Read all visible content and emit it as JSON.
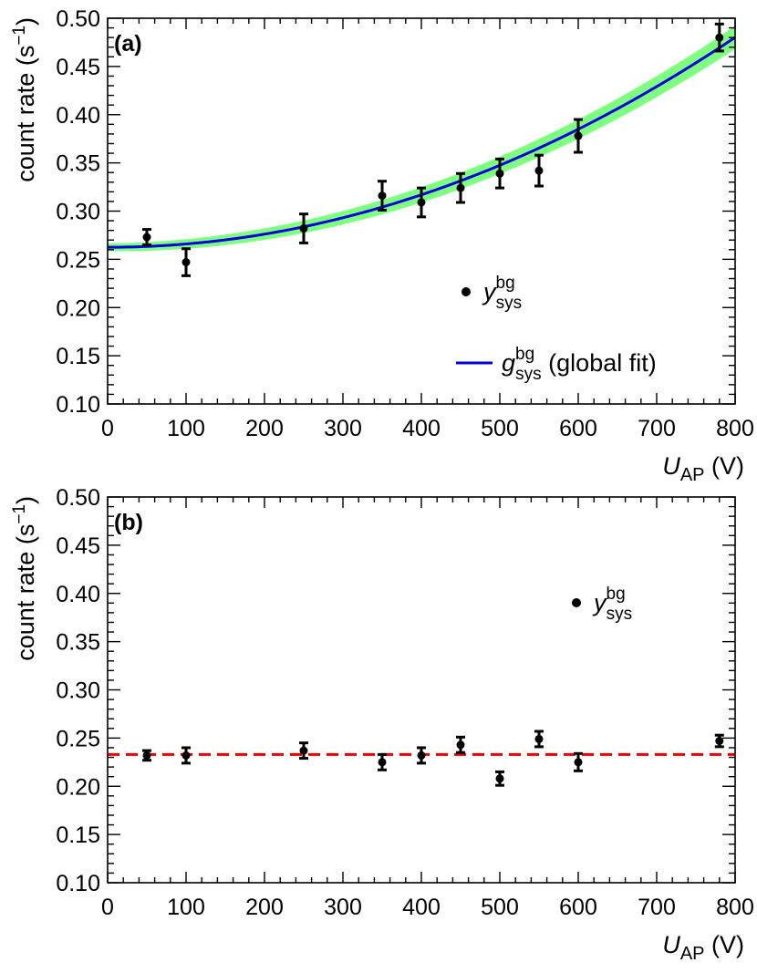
{
  "chart_data": [
    {
      "type": "scatter",
      "panel_label": "(a)",
      "xlabel": "U",
      "xlabel_sub": "AP",
      "xlabel_unit": "(V)",
      "ylabel": "count rate (s",
      "ylabel_sup": "−1",
      "ylabel_close": ")",
      "xlim": [
        0,
        800
      ],
      "ylim": [
        0.1,
        0.5
      ],
      "xticks": [
        0,
        100,
        200,
        300,
        400,
        500,
        600,
        700,
        800
      ],
      "yticks": [
        0.1,
        0.15,
        0.2,
        0.25,
        0.3,
        0.35,
        0.4,
        0.45,
        0.5
      ],
      "xtick_labels": [
        "0",
        "100",
        "200",
        "300",
        "400",
        "500",
        "600",
        "700",
        "800"
      ],
      "ytick_labels": [
        "0.10",
        "0.15",
        "0.20",
        "0.25",
        "0.30",
        "0.35",
        "0.40",
        "0.45",
        "0.50"
      ],
      "grid": false,
      "series": [
        {
          "name": "y_sys^bg",
          "kind": "points",
          "x": [
            50,
            100,
            250,
            350,
            400,
            450,
            500,
            550,
            600,
            780
          ],
          "y": [
            0.273,
            0.247,
            0.282,
            0.316,
            0.309,
            0.324,
            0.339,
            0.342,
            0.378,
            0.48
          ],
          "yerr": [
            0.008,
            0.014,
            0.015,
            0.015,
            0.015,
            0.015,
            0.015,
            0.016,
            0.017,
            0.014
          ]
        },
        {
          "name": "g_sys^bg (global fit)",
          "kind": "curve",
          "color": "#0000dd",
          "band_color": "#7fff7f",
          "model": "a + b*x^2",
          "a": 0.2625,
          "b": 3.4e-07,
          "band_halfwidth_at_0": 0.004,
          "band_halfwidth_at_800": 0.012
        }
      ],
      "legend": [
        {
          "symbol": "point",
          "text": "y",
          "sub": "sys",
          "sup": "bg"
        },
        {
          "symbol": "line",
          "text": "g",
          "sub": "sys",
          "sup": "bg",
          "suffix": "(global fit)"
        }
      ]
    },
    {
      "type": "scatter",
      "panel_label": "(b)",
      "xlabel": "U",
      "xlabel_sub": "AP",
      "xlabel_unit": "(V)",
      "ylabel": "count rate (s",
      "ylabel_sup": "−1",
      "ylabel_close": ")",
      "xlim": [
        0,
        800
      ],
      "ylim": [
        0.1,
        0.5
      ],
      "xticks": [
        0,
        100,
        200,
        300,
        400,
        500,
        600,
        700,
        800
      ],
      "yticks": [
        0.1,
        0.15,
        0.2,
        0.25,
        0.3,
        0.35,
        0.4,
        0.45,
        0.5
      ],
      "xtick_labels": [
        "0",
        "100",
        "200",
        "300",
        "400",
        "500",
        "600",
        "700",
        "800"
      ],
      "ytick_labels": [
        "0.10",
        "0.15",
        "0.20",
        "0.25",
        "0.30",
        "0.35",
        "0.40",
        "0.45",
        "0.50"
      ],
      "grid": false,
      "series": [
        {
          "name": "y_sys^bg",
          "kind": "points",
          "x": [
            50,
            100,
            250,
            350,
            400,
            450,
            500,
            550,
            600,
            780
          ],
          "y": [
            0.232,
            0.232,
            0.237,
            0.225,
            0.232,
            0.243,
            0.208,
            0.249,
            0.225,
            0.247
          ],
          "yerr": [
            0.005,
            0.008,
            0.008,
            0.008,
            0.008,
            0.008,
            0.007,
            0.008,
            0.009,
            0.006
          ]
        },
        {
          "name": "constant",
          "kind": "hline",
          "color": "#ee0000",
          "value": 0.233
        }
      ],
      "legend": [
        {
          "symbol": "point",
          "text": "y",
          "sub": "sys",
          "sup": "bg"
        }
      ]
    }
  ]
}
